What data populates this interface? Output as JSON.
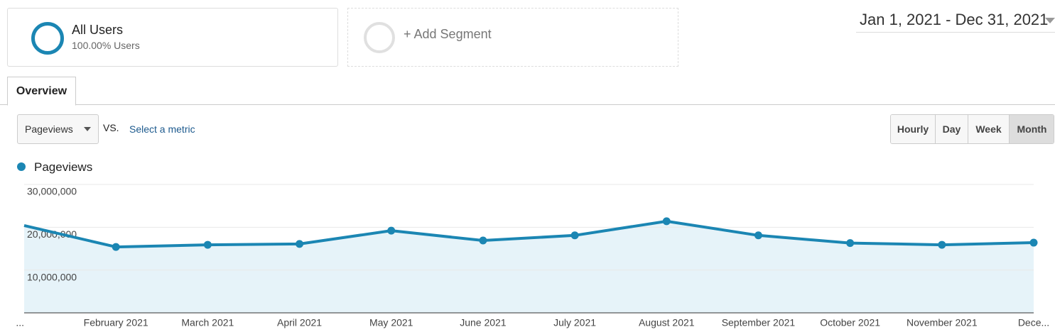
{
  "segments": [
    {
      "title": "All Users",
      "subtitle": "100.00% Users"
    },
    {
      "title": "+ Add Segment"
    }
  ],
  "date_range": "Jan 1, 2021 - Dec 31, 2021",
  "tab": "Overview",
  "metric_select": "Pageviews",
  "vs_label": "VS.",
  "select_metric": "Select a metric",
  "granularity": [
    "Hourly",
    "Day",
    "Week",
    "Month"
  ],
  "chart_data": {
    "type": "line",
    "categories": [
      "...",
      "February 2021",
      "March 2021",
      "April 2021",
      "May 2021",
      "June 2021",
      "July 2021",
      "August 2021",
      "September 2021",
      "October 2021",
      "November 2021",
      "Dece..."
    ],
    "series": [
      {
        "name": "Pageviews",
        "color": "#1b86b3",
        "values": [
          20400000,
          15400000,
          15900000,
          16100000,
          19200000,
          16900000,
          18100000,
          21400000,
          18100000,
          16300000,
          15900000,
          16400000
        ]
      }
    ],
    "ylim": [
      0,
      30000000
    ],
    "yticks": [
      {
        "value": 10000000,
        "label": "10,000,000"
      },
      {
        "value": 20000000,
        "label": "20,000,000"
      },
      {
        "value": 30000000,
        "label": "30,000,000"
      }
    ],
    "grid": true,
    "area": true
  }
}
